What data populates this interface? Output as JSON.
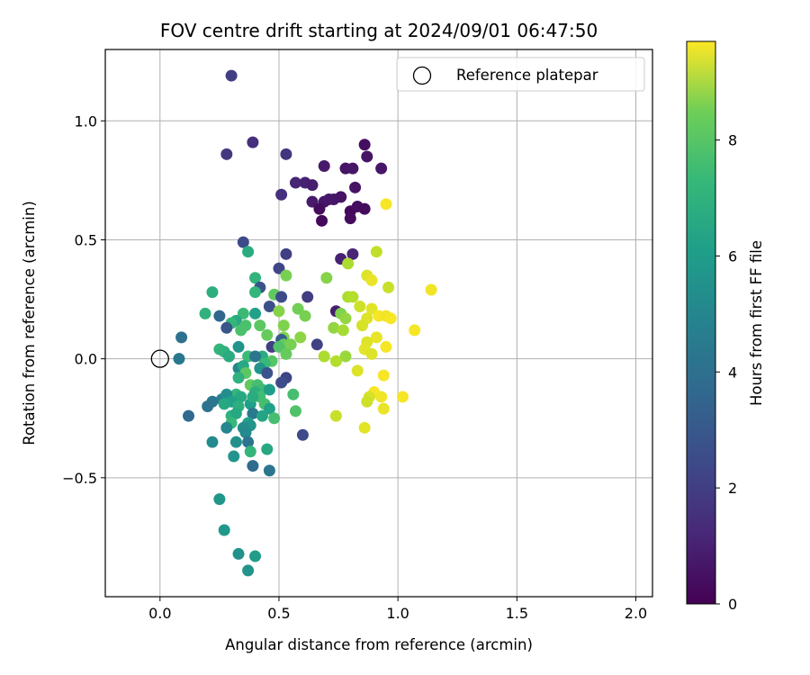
{
  "chart_data": {
    "type": "scatter",
    "title": "FOV centre drift starting at 2024/09/01 06:47:50",
    "xlabel": "Angular distance from reference (arcmin)",
    "ylabel": "Rotation from reference (arcmin)",
    "xlim": [
      -0.23,
      2.07
    ],
    "ylim": [
      -1.0,
      1.3
    ],
    "xticks": [
      0.0,
      0.5,
      1.0,
      1.5,
      2.0
    ],
    "xtick_labels": [
      "0.0",
      "0.5",
      "1.0",
      "1.5",
      "2.0"
    ],
    "yticks": [
      -0.5,
      0.0,
      0.5,
      1.0
    ],
    "ytick_labels": [
      "−0.5",
      "0.0",
      "0.5",
      "1.0"
    ],
    "grid": true,
    "legend": {
      "position": "top-right",
      "entries": [
        "Reference platepar"
      ]
    },
    "reference_point": {
      "x": 0.0,
      "y": 0.0,
      "marker": "open-circle"
    },
    "colorbar": {
      "label": "Hours from first FF file",
      "colormap": "viridis",
      "range": [
        0,
        9.7
      ],
      "ticks": [
        0,
        2,
        4,
        6,
        8
      ],
      "tick_labels": [
        "0",
        "2",
        "4",
        "6",
        "8"
      ]
    },
    "points": [
      [
        0.3,
        1.19,
        1.8
      ],
      [
        0.39,
        0.91,
        1.3
      ],
      [
        0.28,
        0.86,
        1.6
      ],
      [
        0.53,
        0.86,
        1.5
      ],
      [
        0.86,
        0.9,
        0.4
      ],
      [
        0.87,
        0.85,
        0.5
      ],
      [
        0.93,
        0.8,
        0.6
      ],
      [
        0.78,
        0.8,
        0.5
      ],
      [
        0.81,
        0.8,
        0.6
      ],
      [
        0.69,
        0.81,
        0.7
      ],
      [
        0.57,
        0.74,
        1.0
      ],
      [
        0.61,
        0.74,
        0.9
      ],
      [
        0.64,
        0.73,
        0.8
      ],
      [
        0.51,
        0.69,
        1.3
      ],
      [
        0.82,
        0.72,
        0.5
      ],
      [
        0.64,
        0.66,
        0.7
      ],
      [
        0.69,
        0.66,
        0.6
      ],
      [
        0.71,
        0.67,
        0.6
      ],
      [
        0.76,
        0.68,
        0.5
      ],
      [
        0.73,
        0.67,
        0.6
      ],
      [
        0.67,
        0.63,
        0.3
      ],
      [
        0.8,
        0.62,
        0.2
      ],
      [
        0.83,
        0.64,
        0.4
      ],
      [
        0.86,
        0.63,
        0.3
      ],
      [
        0.68,
        0.58,
        0.2
      ],
      [
        0.8,
        0.59,
        0.3
      ],
      [
        0.95,
        0.65,
        9.6
      ],
      [
        0.35,
        0.49,
        2.2
      ],
      [
        0.53,
        0.44,
        1.8
      ],
      [
        0.81,
        0.44,
        1.0
      ],
      [
        0.76,
        0.42,
        0.9
      ],
      [
        0.37,
        0.45,
        6.0
      ],
      [
        0.5,
        0.38,
        2.0
      ],
      [
        0.79,
        0.4,
        8.5
      ],
      [
        0.91,
        0.45,
        8.8
      ],
      [
        0.4,
        0.34,
        6.3
      ],
      [
        0.53,
        0.35,
        7.7
      ],
      [
        0.7,
        0.34,
        7.9
      ],
      [
        0.87,
        0.35,
        9.2
      ],
      [
        0.89,
        0.33,
        9.4
      ],
      [
        0.96,
        0.3,
        8.9
      ],
      [
        1.14,
        0.29,
        9.5
      ],
      [
        0.42,
        0.3,
        2.5
      ],
      [
        0.4,
        0.28,
        6.4
      ],
      [
        0.22,
        0.28,
        6.1
      ],
      [
        0.48,
        0.27,
        7.3
      ],
      [
        0.51,
        0.26,
        2.2
      ],
      [
        0.62,
        0.26,
        1.7
      ],
      [
        0.79,
        0.26,
        8.5
      ],
      [
        0.81,
        0.26,
        8.6
      ],
      [
        0.84,
        0.22,
        9.0
      ],
      [
        0.89,
        0.21,
        9.3
      ],
      [
        0.46,
        0.22,
        2.4
      ],
      [
        0.58,
        0.21,
        7.6
      ],
      [
        0.5,
        0.2,
        7.9
      ],
      [
        0.74,
        0.2,
        0.8
      ],
      [
        0.76,
        0.19,
        7.8
      ],
      [
        0.4,
        0.19,
        5.5
      ],
      [
        0.19,
        0.19,
        6.2
      ],
      [
        0.25,
        0.18,
        3.2
      ],
      [
        0.35,
        0.19,
        6.6
      ],
      [
        0.32,
        0.16,
        5.8
      ],
      [
        0.3,
        0.15,
        6.4
      ],
      [
        0.61,
        0.18,
        7.7
      ],
      [
        0.78,
        0.17,
        8.1
      ],
      [
        0.87,
        0.17,
        9.2
      ],
      [
        0.92,
        0.18,
        9.6
      ],
      [
        0.95,
        0.18,
        9.5
      ],
      [
        0.97,
        0.17,
        9.6
      ],
      [
        0.36,
        0.14,
        6.9
      ],
      [
        0.42,
        0.14,
        7.2
      ],
      [
        0.52,
        0.14,
        7.8
      ],
      [
        0.85,
        0.14,
        9.1
      ],
      [
        0.28,
        0.13,
        2.6
      ],
      [
        0.73,
        0.13,
        8.1
      ],
      [
        0.77,
        0.12,
        8.4
      ],
      [
        0.34,
        0.12,
        6.9
      ],
      [
        1.07,
        0.12,
        9.6
      ],
      [
        0.45,
        0.1,
        7.4
      ],
      [
        0.52,
        0.09,
        7.8
      ],
      [
        0.59,
        0.09,
        8.0
      ],
      [
        0.09,
        0.09,
        3.6
      ],
      [
        0.91,
        0.09,
        9.4
      ],
      [
        0.51,
        0.08,
        2.8
      ],
      [
        0.33,
        0.05,
        5.0
      ],
      [
        0.47,
        0.05,
        1.8
      ],
      [
        0.52,
        0.06,
        7.4
      ],
      [
        0.87,
        0.07,
        9.2
      ],
      [
        0.95,
        0.05,
        9.6
      ],
      [
        0.25,
        0.04,
        6.4
      ],
      [
        0.27,
        0.03,
        6.2
      ],
      [
        0.66,
        0.06,
        1.9
      ],
      [
        0.86,
        0.04,
        9.3
      ],
      [
        0.5,
        0.05,
        7.0
      ],
      [
        0.55,
        0.06,
        7.7
      ],
      [
        0.43,
        0.01,
        6.0
      ],
      [
        0.53,
        0.02,
        7.4
      ],
      [
        0.69,
        0.01,
        8.5
      ],
      [
        0.78,
        0.01,
        8.2
      ],
      [
        0.89,
        0.02,
        9.2
      ],
      [
        0.29,
        0.01,
        6.0
      ],
      [
        0.37,
        0.01,
        6.6
      ],
      [
        0.4,
        0.01,
        3.8
      ],
      [
        0.47,
        -0.01,
        7.1
      ],
      [
        0.44,
        -0.02,
        6.5
      ],
      [
        0.74,
        -0.01,
        8.6
      ],
      [
        0.08,
        0.0,
        3.9
      ],
      [
        0.33,
        -0.04,
        4.5
      ],
      [
        0.35,
        -0.03,
        5.8
      ],
      [
        0.42,
        -0.04,
        5.0
      ],
      [
        0.36,
        -0.06,
        7.2
      ],
      [
        0.45,
        -0.06,
        2.5
      ],
      [
        0.83,
        -0.05,
        9.2
      ],
      [
        0.94,
        -0.07,
        9.6
      ],
      [
        0.33,
        -0.08,
        6.2
      ],
      [
        0.53,
        -0.08,
        2.0
      ],
      [
        0.51,
        -0.1,
        2.2
      ],
      [
        0.38,
        -0.11,
        7.3
      ],
      [
        0.41,
        -0.11,
        6.8
      ],
      [
        0.43,
        -0.13,
        6.6
      ],
      [
        0.46,
        -0.13,
        5.4
      ],
      [
        0.9,
        -0.14,
        9.6
      ],
      [
        0.32,
        -0.15,
        6.4
      ],
      [
        0.4,
        -0.14,
        6.1
      ],
      [
        0.34,
        -0.16,
        5.8
      ],
      [
        0.42,
        -0.16,
        6.7
      ],
      [
        0.56,
        -0.15,
        6.8
      ],
      [
        0.88,
        -0.16,
        9.1
      ],
      [
        0.93,
        -0.16,
        9.5
      ],
      [
        1.02,
        -0.16,
        9.6
      ],
      [
        0.26,
        -0.17,
        4.3
      ],
      [
        0.28,
        -0.15,
        4.8
      ],
      [
        0.22,
        -0.18,
        3.8
      ],
      [
        0.3,
        -0.18,
        5.5
      ],
      [
        0.27,
        -0.19,
        5.8
      ],
      [
        0.38,
        -0.19,
        5.4
      ],
      [
        0.39,
        -0.16,
        6.0
      ],
      [
        0.44,
        -0.19,
        6.8
      ],
      [
        0.87,
        -0.18,
        9.0
      ],
      [
        0.2,
        -0.2,
        3.7
      ],
      [
        0.33,
        -0.2,
        6.1
      ],
      [
        0.46,
        -0.21,
        5.5
      ],
      [
        0.57,
        -0.22,
        7.0
      ],
      [
        0.94,
        -0.21,
        9.4
      ],
      [
        0.12,
        -0.24,
        3.3
      ],
      [
        0.3,
        -0.24,
        6.2
      ],
      [
        0.32,
        -0.23,
        5.8
      ],
      [
        0.39,
        -0.23,
        4.0
      ],
      [
        0.43,
        -0.24,
        5.7
      ],
      [
        0.48,
        -0.25,
        6.8
      ],
      [
        0.74,
        -0.24,
        8.9
      ],
      [
        0.3,
        -0.27,
        6.5
      ],
      [
        0.37,
        -0.27,
        5.6
      ],
      [
        0.38,
        -0.28,
        5.0
      ],
      [
        0.35,
        -0.29,
        4.7
      ],
      [
        0.28,
        -0.29,
        4.5
      ],
      [
        0.86,
        -0.29,
        9.3
      ],
      [
        0.36,
        -0.31,
        4.6
      ],
      [
        0.6,
        -0.32,
        2.2
      ],
      [
        0.22,
        -0.35,
        4.6
      ],
      [
        0.32,
        -0.35,
        4.9
      ],
      [
        0.37,
        -0.35,
        3.8
      ],
      [
        0.45,
        -0.38,
        5.8
      ],
      [
        0.38,
        -0.39,
        6.4
      ],
      [
        0.31,
        -0.41,
        5.0
      ],
      [
        0.39,
        -0.45,
        3.4
      ],
      [
        0.46,
        -0.47,
        3.8
      ],
      [
        0.25,
        -0.59,
        5.1
      ],
      [
        0.27,
        -0.72,
        5.2
      ],
      [
        0.33,
        -0.82,
        4.9
      ],
      [
        0.4,
        -0.83,
        5.3
      ],
      [
        0.37,
        -0.89,
        5.0
      ]
    ]
  }
}
